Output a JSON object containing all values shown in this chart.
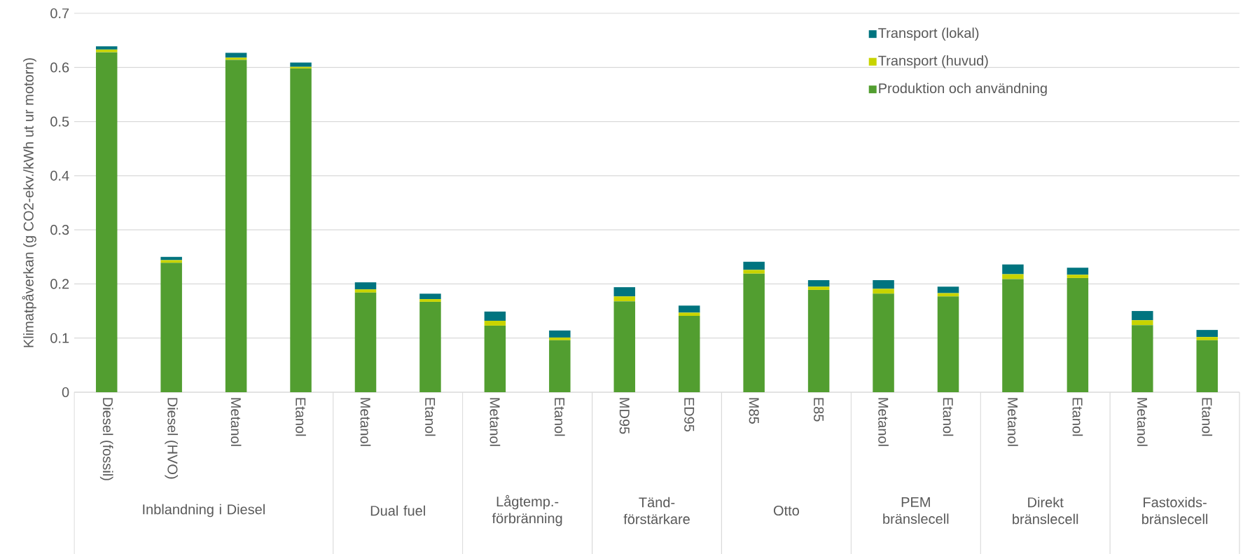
{
  "chart_data": {
    "type": "bar",
    "stacked": true,
    "ylabel": "Klimatpåverkan (g CO2-ekv./kWh ut ur motorn)",
    "categories": [
      "Diesel (fossil)",
      "Diesel (HVO)",
      "Metanol",
      "Etanol",
      "Metanol",
      "Etanol",
      "Metanol",
      "Etanol",
      "MD95",
      "ED95",
      "M85",
      "E85",
      "Metanol",
      "Etanol",
      "Metanol",
      "Etanol",
      "Metanol",
      "Etanol"
    ],
    "annotations": [
      "Inblandning i Diesel",
      "Dual fuel",
      "Lågtemp.-förbränning",
      "Tänd-förstärkare",
      "Otto",
      "PEM bränslecell",
      "Direkt bränslecell",
      "Fastoxids-bränslecell"
    ],
    "series": [
      {
        "name": "Produktion och användning",
        "color": "#529e30",
        "values": [
          0.628,
          0.239,
          0.614,
          0.598,
          0.184,
          0.167,
          0.123,
          0.096,
          0.168,
          0.141,
          0.219,
          0.189,
          0.182,
          0.177,
          0.209,
          0.211,
          0.124,
          0.096
        ]
      },
      {
        "name": "Transport (huvud)",
        "color": "#c8d400",
        "values": [
          0.005,
          0.005,
          0.004,
          0.003,
          0.006,
          0.005,
          0.009,
          0.005,
          0.009,
          0.006,
          0.007,
          0.006,
          0.009,
          0.006,
          0.009,
          0.006,
          0.009,
          0.006
        ]
      },
      {
        "name": "Transport (lokal)",
        "color": "#00747f",
        "values": [
          0.006,
          0.006,
          0.009,
          0.008,
          0.013,
          0.01,
          0.017,
          0.013,
          0.017,
          0.013,
          0.015,
          0.012,
          0.016,
          0.012,
          0.018,
          0.013,
          0.017,
          0.013
        ]
      }
    ],
    "ylim": [
      0,
      0.7
    ],
    "yticks": [
      0,
      0.1,
      0.2,
      0.3,
      0.4,
      0.5,
      0.6,
      0.7
    ],
    "grid": "y",
    "legend": "top right"
  }
}
